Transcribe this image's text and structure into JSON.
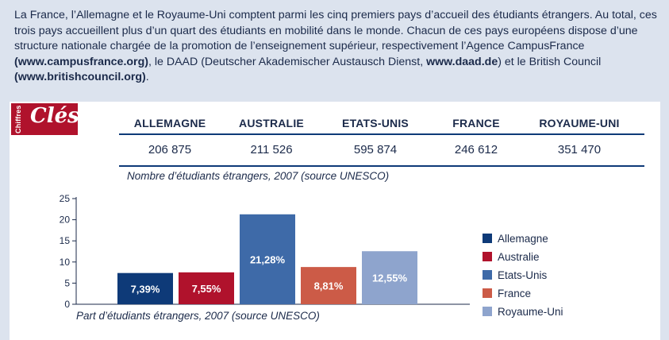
{
  "intro": {
    "part1": "La France, l’Allemagne et le Royaume-Uni comptent parmi les cinq premiers pays d’accueil des étudiants étrangers. Au total, ces trois pays accueillent plus d’un quart des étudiants en mobilité dans le monde. Chacun de ces pays européens dispose d’une structure nationale chargée de la promotion de l’enseignement supérieur, respectivement l’Agence CampusFrance ",
    "link1": "(www.campusfrance.org)",
    "part2": ", le DAAD (Deutscher Akademischer Austausch Dienst, ",
    "link2": "www.daad.de",
    "part3": ") et le British Council ",
    "link3": "(www.britishcouncil.org)",
    "part4": "."
  },
  "badge": {
    "small": "Chiffres",
    "big": "Clés"
  },
  "table": {
    "columns": [
      "ALLEMAGNE",
      "AUSTRALIE",
      "ETATS-UNIS",
      "FRANCE",
      "ROYAUME-UNI"
    ],
    "values": [
      "206 875",
      "211 526",
      "595 874",
      "246 612",
      "351 470"
    ],
    "caption": "Nombre d’étudiants étrangers, 2007 (source UNESCO)"
  },
  "colors": {
    "allemagne": "#0e3a78",
    "australie": "#b0122c",
    "etats_unis": "#3e6aa8",
    "france": "#cc5b47",
    "royaume_uni": "#8ea4cd",
    "text": "#1b2a4a"
  },
  "chart_data": {
    "type": "bar",
    "title": "",
    "categories": [
      "Allemagne",
      "Australie",
      "Etats-Unis",
      "France",
      "Royaume-Uni"
    ],
    "values": [
      7.39,
      7.55,
      21.28,
      8.81,
      12.55
    ],
    "labels": [
      "7,39%",
      "7,55%",
      "21,28%",
      "8,81%",
      "12,55%"
    ],
    "ylim": [
      0,
      25
    ],
    "yticks": [
      "0",
      "5",
      "10",
      "15",
      "20",
      "25"
    ],
    "xlabel": "Part d’étudiants étrangers, 2007 (source UNESCO)",
    "ylabel": "",
    "legend": [
      "Allemagne",
      "Australie",
      "Etats-Unis",
      "France",
      "Royaume-Uni"
    ],
    "legend_position": "right"
  }
}
